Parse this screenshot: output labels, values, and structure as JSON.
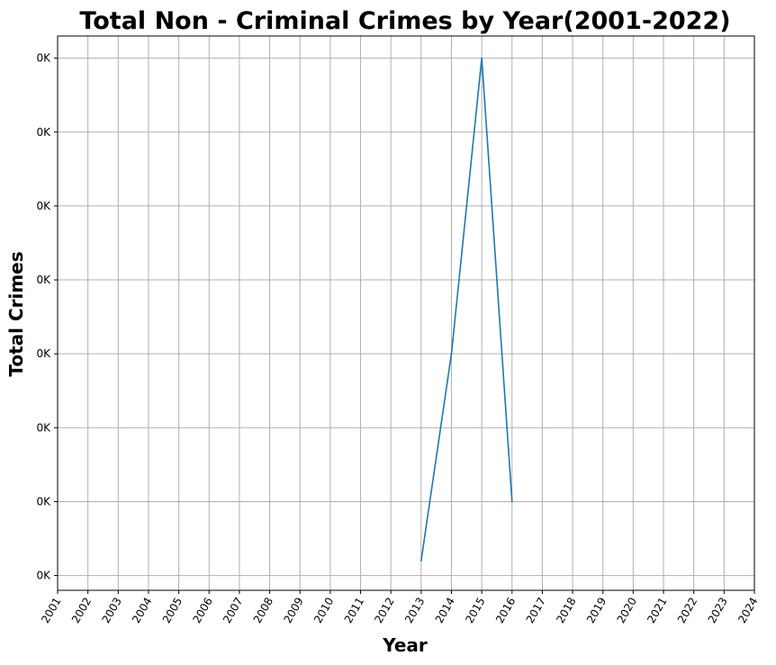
{
  "chart_data": {
    "type": "line",
    "title": "Total Non - Criminal Crimes by Year(2001-2022)",
    "xlabel": "Year",
    "ylabel": "Total Crimes",
    "xlim": [
      2001,
      2024
    ],
    "x_ticks": [
      "2001",
      "2002",
      "2003",
      "2004",
      "2005",
      "2006",
      "2007",
      "2008",
      "2009",
      "2010",
      "2011",
      "2012",
      "2013",
      "2014",
      "2015",
      "2016",
      "2017",
      "2018",
      "2019",
      "2020",
      "2021",
      "2022",
      "2023",
      "2024"
    ],
    "ylim": [
      0.8,
      8.3
    ],
    "y_ticks": [
      1,
      2,
      3,
      4,
      5,
      6,
      7,
      8
    ],
    "y_tick_labels": [
      "0K",
      "0K",
      "0K",
      "0K",
      "0K",
      "0K",
      "0K",
      "0K"
    ],
    "grid": true,
    "series": [
      {
        "color": "#1f77b4",
        "x": [
          2013,
          2014,
          2015,
          2016
        ],
        "y": [
          1.2,
          4,
          8,
          2
        ]
      }
    ]
  }
}
